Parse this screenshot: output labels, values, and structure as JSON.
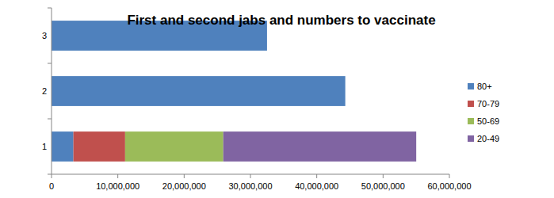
{
  "chart_data": {
    "type": "bar",
    "orientation": "horizontal",
    "stacked": true,
    "title": "First and second jabs and numbers to vaccinate",
    "categories": [
      "1",
      "2",
      "3"
    ],
    "series": [
      {
        "name": "80+",
        "color": "#4f81bd",
        "values": [
          3300000,
          44300000,
          32500000
        ]
      },
      {
        "name": "70-79",
        "color": "#c0504d",
        "values": [
          7800000,
          0,
          0
        ]
      },
      {
        "name": "50-69",
        "color": "#9bbb59",
        "values": [
          14800000,
          0,
          0
        ]
      },
      {
        "name": "20-49",
        "color": "#8064a2",
        "values": [
          29100000,
          0,
          0
        ]
      }
    ],
    "xlim": [
      0,
      60000000
    ],
    "xticks": [
      0,
      {
        "value": 10000000,
        "label": "10,000,000"
      },
      {
        "value": 20000000,
        "label": "20,000,000"
      },
      {
        "value": 30000000,
        "label": "30,000,000"
      },
      {
        "value": 40000000,
        "label": "40,000,000"
      },
      {
        "value": 50000000,
        "label": "50,000,000"
      },
      {
        "value": 60000000,
        "label": "60,000,000"
      }
    ],
    "legend": "right"
  }
}
